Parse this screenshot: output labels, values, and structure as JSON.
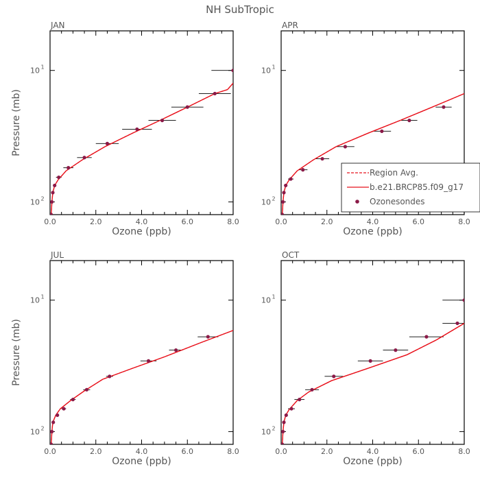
{
  "figure_title": "NH SubTropic",
  "colors": {
    "model": "#e8101a",
    "ozonesondes": "#8b1a48",
    "errorbar": "#000000"
  },
  "legend": {
    "items": [
      {
        "label": "Region Avg.",
        "style": "dashed"
      },
      {
        "label": "b.e21.BRCP85.f09_g17",
        "style": "solid"
      },
      {
        "label": "Ozonesondes",
        "style": "marker"
      }
    ],
    "placement": "right side of APR panel"
  },
  "chart_data": [
    {
      "type": "line",
      "panel": "JAN",
      "xlabel": "Ozone (ppb)",
      "ylabel": "Pressure (mb)",
      "xlim": [
        0,
        8
      ],
      "ylim": [
        125,
        5
      ],
      "yscale": "log",
      "xticks": [
        "0.0",
        "2.0",
        "4.0",
        "6.0",
        "8.0"
      ],
      "yticks": [
        {
          "value": 10,
          "base": "10",
          "exp": "1"
        },
        {
          "value": 100,
          "base": "10",
          "exp": "2"
        }
      ],
      "series": [
        {
          "name": "Region Avg.",
          "style": "dashed",
          "x": [
            0.05,
            0.08,
            0.12,
            0.2,
            0.35,
            0.7,
            1.4,
            2.4,
            3.6,
            4.8,
            6.0,
            7.2,
            7.75,
            8.0
          ],
          "y": [
            125,
            100,
            85,
            75,
            68,
            58,
            48,
            38,
            30,
            24,
            19,
            15,
            14,
            12.5
          ]
        },
        {
          "name": "b.e21.BRCP85.f09_g17",
          "style": "solid",
          "x": [
            0.05,
            0.08,
            0.12,
            0.2,
            0.35,
            0.7,
            1.4,
            2.4,
            3.6,
            4.8,
            6.0,
            7.2,
            7.75,
            8.0
          ],
          "y": [
            125,
            100,
            85,
            75,
            68,
            58,
            48,
            38,
            30,
            24,
            19,
            15,
            14,
            12.5
          ]
        }
      ],
      "ozonesondes": [
        {
          "x": 0.05,
          "y": 125,
          "xerr": 0.03
        },
        {
          "x": 0.08,
          "y": 100,
          "xerr": 0.04
        },
        {
          "x": 0.12,
          "y": 85,
          "xerr": 0.05
        },
        {
          "x": 0.2,
          "y": 75,
          "xerr": 0.06
        },
        {
          "x": 0.38,
          "y": 65,
          "xerr": 0.12
        },
        {
          "x": 0.8,
          "y": 55,
          "xerr": 0.22
        },
        {
          "x": 1.5,
          "y": 46,
          "xerr": 0.32
        },
        {
          "x": 2.5,
          "y": 36,
          "xerr": 0.5
        },
        {
          "x": 3.8,
          "y": 28,
          "xerr": 0.65
        },
        {
          "x": 4.9,
          "y": 24,
          "xerr": 0.6
        },
        {
          "x": 6.0,
          "y": 19,
          "xerr": 0.7
        },
        {
          "x": 7.2,
          "y": 15,
          "xerr": 0.7
        },
        {
          "x": 8.0,
          "y": 10,
          "xerr": 0.95
        }
      ]
    },
    {
      "type": "line",
      "panel": "APR",
      "xlabel": "Ozone (ppb)",
      "ylabel": "",
      "xlim": [
        0,
        8
      ],
      "ylim": [
        125,
        5
      ],
      "yscale": "log",
      "xticks": [
        "0.0",
        "2.0",
        "4.0",
        "6.0",
        "8.0"
      ],
      "yticks": [
        {
          "value": 10,
          "base": "10",
          "exp": "1"
        },
        {
          "value": 100,
          "base": "10",
          "exp": "2"
        }
      ],
      "series": [
        {
          "name": "Region Avg.",
          "style": "dashed",
          "x": [
            0.05,
            0.08,
            0.12,
            0.2,
            0.35,
            0.7,
            1.4,
            2.4,
            3.8,
            5.2,
            6.6,
            8.0
          ],
          "y": [
            125,
            100,
            85,
            75,
            68,
            58,
            48,
            38,
            30,
            24,
            19,
            15
          ]
        },
        {
          "name": "b.e21.BRCP85.f09_g17",
          "style": "solid",
          "x": [
            0.05,
            0.08,
            0.12,
            0.2,
            0.35,
            0.7,
            1.4,
            2.4,
            3.8,
            5.2,
            6.6,
            8.0
          ],
          "y": [
            125,
            100,
            85,
            75,
            68,
            58,
            48,
            38,
            30,
            24,
            19,
            15
          ]
        }
      ],
      "ozonesondes": [
        {
          "x": 0.05,
          "y": 125,
          "xerr": 0.03
        },
        {
          "x": 0.08,
          "y": 100,
          "xerr": 0.04
        },
        {
          "x": 0.12,
          "y": 85,
          "xerr": 0.05
        },
        {
          "x": 0.2,
          "y": 75,
          "xerr": 0.06
        },
        {
          "x": 0.42,
          "y": 67,
          "xerr": 0.12
        },
        {
          "x": 0.95,
          "y": 57,
          "xerr": 0.2
        },
        {
          "x": 1.8,
          "y": 47,
          "xerr": 0.3
        },
        {
          "x": 2.8,
          "y": 38,
          "xerr": 0.4
        },
        {
          "x": 4.4,
          "y": 29,
          "xerr": 0.4
        },
        {
          "x": 5.6,
          "y": 24,
          "xerr": 0.35
        },
        {
          "x": 7.1,
          "y": 19,
          "xerr": 0.35
        }
      ]
    },
    {
      "type": "line",
      "panel": "JUL",
      "xlabel": "Ozone (ppb)",
      "ylabel": "Pressure (mb)",
      "xlim": [
        0,
        8
      ],
      "ylim": [
        125,
        5
      ],
      "yscale": "log",
      "xticks": [
        "0.0",
        "2.0",
        "4.0",
        "6.0",
        "8.0"
      ],
      "yticks": [
        {
          "value": 10,
          "base": "10",
          "exp": "1"
        },
        {
          "value": 100,
          "base": "10",
          "exp": "2"
        }
      ],
      "series": [
        {
          "name": "Region Avg.",
          "style": "dashed",
          "x": [
            0.05,
            0.08,
            0.12,
            0.25,
            0.45,
            0.9,
            1.5,
            2.3,
            3.6,
            5.0,
            6.6,
            8.0
          ],
          "y": [
            125,
            100,
            85,
            75,
            67,
            58,
            49,
            40,
            33,
            27,
            21,
            17
          ]
        },
        {
          "name": "b.e21.BRCP85.f09_g17",
          "style": "solid",
          "x": [
            0.05,
            0.08,
            0.12,
            0.25,
            0.45,
            0.9,
            1.5,
            2.3,
            3.6,
            5.0,
            6.6,
            8.0
          ],
          "y": [
            125,
            100,
            85,
            75,
            67,
            58,
            49,
            40,
            33,
            27,
            21,
            17
          ]
        }
      ],
      "ozonesondes": [
        {
          "x": 0.05,
          "y": 125,
          "xerr": 0.03
        },
        {
          "x": 0.08,
          "y": 100,
          "xerr": 0.04
        },
        {
          "x": 0.14,
          "y": 85,
          "xerr": 0.05
        },
        {
          "x": 0.32,
          "y": 75,
          "xerr": 0.07
        },
        {
          "x": 0.6,
          "y": 67,
          "xerr": 0.1
        },
        {
          "x": 1.0,
          "y": 57,
          "xerr": 0.12
        },
        {
          "x": 1.6,
          "y": 48,
          "xerr": 0.15
        },
        {
          "x": 2.6,
          "y": 38,
          "xerr": 0.15
        },
        {
          "x": 4.3,
          "y": 29,
          "xerr": 0.35
        },
        {
          "x": 5.5,
          "y": 24,
          "xerr": 0.3
        },
        {
          "x": 6.9,
          "y": 19,
          "xerr": 0.45
        }
      ]
    },
    {
      "type": "line",
      "panel": "OCT",
      "xlabel": "Ozone (ppb)",
      "ylabel": "",
      "xlim": [
        0,
        8
      ],
      "ylim": [
        125,
        5
      ],
      "yscale": "log",
      "xticks": [
        "0.0",
        "2.0",
        "4.0",
        "6.0",
        "8.0"
      ],
      "yticks": [
        {
          "value": 10,
          "base": "10",
          "exp": "1"
        },
        {
          "value": 100,
          "base": "10",
          "exp": "2"
        }
      ],
      "series": [
        {
          "name": "Region Avg.",
          "style": "dashed",
          "x": [
            0.05,
            0.08,
            0.12,
            0.2,
            0.35,
            0.7,
            1.2,
            2.2,
            3.8,
            5.5,
            6.8,
            8.0
          ],
          "y": [
            125,
            100,
            85,
            75,
            68,
            58,
            50,
            41,
            33,
            26,
            20,
            15
          ]
        },
        {
          "name": "b.e21.BRCP85.f09_g17",
          "style": "solid",
          "x": [
            0.05,
            0.08,
            0.12,
            0.2,
            0.35,
            0.7,
            1.2,
            2.2,
            3.8,
            5.5,
            6.8,
            8.0
          ],
          "y": [
            125,
            100,
            85,
            75,
            68,
            58,
            50,
            41,
            33,
            26,
            20,
            15
          ]
        }
      ],
      "ozonesondes": [
        {
          "x": 0.05,
          "y": 125,
          "xerr": 0.03
        },
        {
          "x": 0.08,
          "y": 100,
          "xerr": 0.04
        },
        {
          "x": 0.12,
          "y": 85,
          "xerr": 0.05
        },
        {
          "x": 0.22,
          "y": 75,
          "xerr": 0.06
        },
        {
          "x": 0.45,
          "y": 67,
          "xerr": 0.15
        },
        {
          "x": 0.8,
          "y": 57,
          "xerr": 0.22
        },
        {
          "x": 1.35,
          "y": 48,
          "xerr": 0.3
        },
        {
          "x": 2.3,
          "y": 38,
          "xerr": 0.4
        },
        {
          "x": 3.9,
          "y": 29,
          "xerr": 0.55
        },
        {
          "x": 5.0,
          "y": 24,
          "xerr": 0.55
        },
        {
          "x": 6.35,
          "y": 19,
          "xerr": 0.75
        },
        {
          "x": 7.7,
          "y": 15,
          "xerr": 0.65
        },
        {
          "x": 8.0,
          "y": 10,
          "xerr": 0.95
        }
      ]
    }
  ]
}
